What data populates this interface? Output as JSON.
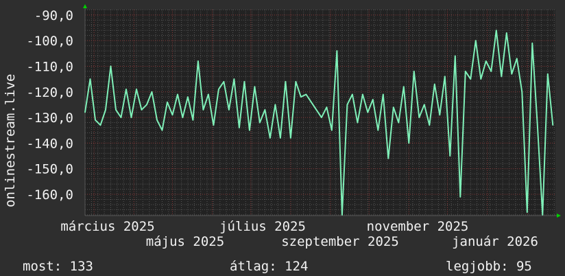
{
  "chart_data": {
    "type": "line",
    "ylabel": "onlinestream.live",
    "ylim": [
      -168.3,
      -87.9
    ],
    "y_ticks": [
      "-90,0",
      "-100,0",
      "-110,0",
      "-120,0",
      "-130,0",
      "-140,0",
      "-150,0",
      "-160,0"
    ],
    "y_tick_values": [
      -90,
      -100,
      -110,
      -120,
      -130,
      -140,
      -150,
      -160
    ],
    "x_range": [
      "2025-02-22",
      "2026-02-23"
    ],
    "x_ticks": [
      "március 2025",
      "május 2025",
      "július 2025",
      "szeptember 2025",
      "november 2025",
      "január 2026"
    ],
    "grid": true,
    "colors": {
      "line": "#7ff0b8",
      "background": "#2e2e2e",
      "plot": "#222222",
      "major_grid": "#8a3a3a",
      "minor_grid": "#555555",
      "arrow": "#00d000"
    },
    "series": [
      {
        "points": [
          [
            "2025-02-22",
            -128
          ],
          [
            "2025-02-26",
            -115
          ],
          [
            "2025-03-02",
            -131
          ],
          [
            "2025-03-06",
            -133
          ],
          [
            "2025-03-10",
            -127
          ],
          [
            "2025-03-14",
            -110
          ],
          [
            "2025-03-18",
            -127
          ],
          [
            "2025-03-22",
            -130
          ],
          [
            "2025-03-26",
            -119
          ],
          [
            "2025-03-30",
            -130
          ],
          [
            "2025-04-03",
            -119
          ],
          [
            "2025-04-07",
            -127
          ],
          [
            "2025-04-11",
            -125
          ],
          [
            "2025-04-15",
            -120
          ],
          [
            "2025-04-19",
            -131
          ],
          [
            "2025-04-23",
            -135
          ],
          [
            "2025-04-27",
            -124
          ],
          [
            "2025-05-01",
            -129
          ],
          [
            "2025-05-05",
            -121
          ],
          [
            "2025-05-09",
            -130
          ],
          [
            "2025-05-13",
            -122
          ],
          [
            "2025-05-17",
            -131
          ],
          [
            "2025-05-21",
            -108
          ],
          [
            "2025-05-25",
            -127
          ],
          [
            "2025-05-29",
            -121
          ],
          [
            "2025-06-02",
            -133
          ],
          [
            "2025-06-06",
            -119
          ],
          [
            "2025-06-10",
            -116
          ],
          [
            "2025-06-14",
            -127
          ],
          [
            "2025-06-18",
            -115
          ],
          [
            "2025-06-22",
            -134
          ],
          [
            "2025-06-26",
            -116
          ],
          [
            "2025-06-30",
            -135
          ],
          [
            "2025-07-04",
            -118
          ],
          [
            "2025-07-08",
            -132
          ],
          [
            "2025-07-12",
            -127
          ],
          [
            "2025-07-16",
            -138
          ],
          [
            "2025-07-20",
            -125
          ],
          [
            "2025-07-24",
            -138
          ],
          [
            "2025-07-28",
            -116
          ],
          [
            "2025-08-01",
            -138
          ],
          [
            "2025-08-05",
            -116
          ],
          [
            "2025-08-09",
            -122
          ],
          [
            "2025-08-13",
            -121
          ],
          [
            "2025-08-17",
            -124
          ],
          [
            "2025-08-21",
            -127
          ],
          [
            "2025-08-25",
            -130
          ],
          [
            "2025-08-29",
            -126
          ],
          [
            "2025-09-02",
            -135
          ],
          [
            "2025-09-06",
            -104
          ],
          [
            "2025-09-10",
            -168
          ],
          [
            "2025-09-14",
            -125
          ],
          [
            "2025-09-18",
            -121
          ],
          [
            "2025-09-22",
            -132
          ],
          [
            "2025-09-26",
            -121
          ],
          [
            "2025-09-30",
            -128
          ],
          [
            "2025-10-04",
            -123
          ],
          [
            "2025-10-08",
            -135
          ],
          [
            "2025-10-12",
            -121
          ],
          [
            "2025-10-16",
            -146
          ],
          [
            "2025-10-20",
            -126
          ],
          [
            "2025-10-24",
            -132
          ],
          [
            "2025-10-28",
            -118
          ],
          [
            "2025-11-01",
            -140
          ],
          [
            "2025-11-05",
            -112
          ],
          [
            "2025-11-09",
            -130
          ],
          [
            "2025-11-13",
            -125
          ],
          [
            "2025-11-17",
            -133
          ],
          [
            "2025-11-21",
            -117
          ],
          [
            "2025-11-25",
            -129
          ],
          [
            "2025-11-29",
            -114
          ],
          [
            "2025-12-03",
            -145
          ],
          [
            "2025-12-07",
            -106
          ],
          [
            "2025-12-11",
            -161
          ],
          [
            "2025-12-15",
            -112
          ],
          [
            "2025-12-19",
            -115
          ],
          [
            "2025-12-23",
            -100
          ],
          [
            "2025-12-27",
            -115
          ],
          [
            "2025-12-31",
            -108
          ],
          [
            "2026-01-04",
            -112
          ],
          [
            "2026-01-08",
            -96
          ],
          [
            "2026-01-12",
            -114
          ],
          [
            "2026-01-16",
            -97
          ],
          [
            "2026-01-20",
            -113
          ],
          [
            "2026-01-24",
            -107
          ],
          [
            "2026-01-28",
            -120
          ],
          [
            "2026-02-01",
            -167
          ],
          [
            "2026-02-05",
            -101
          ],
          [
            "2026-02-09",
            -133
          ],
          [
            "2026-02-13",
            -168
          ],
          [
            "2026-02-17",
            -113
          ],
          [
            "2026-02-21",
            -133
          ]
        ]
      }
    ]
  },
  "legend": {
    "current": "most: 133",
    "average": "átlag: 124",
    "best": "legjobb: 95"
  }
}
